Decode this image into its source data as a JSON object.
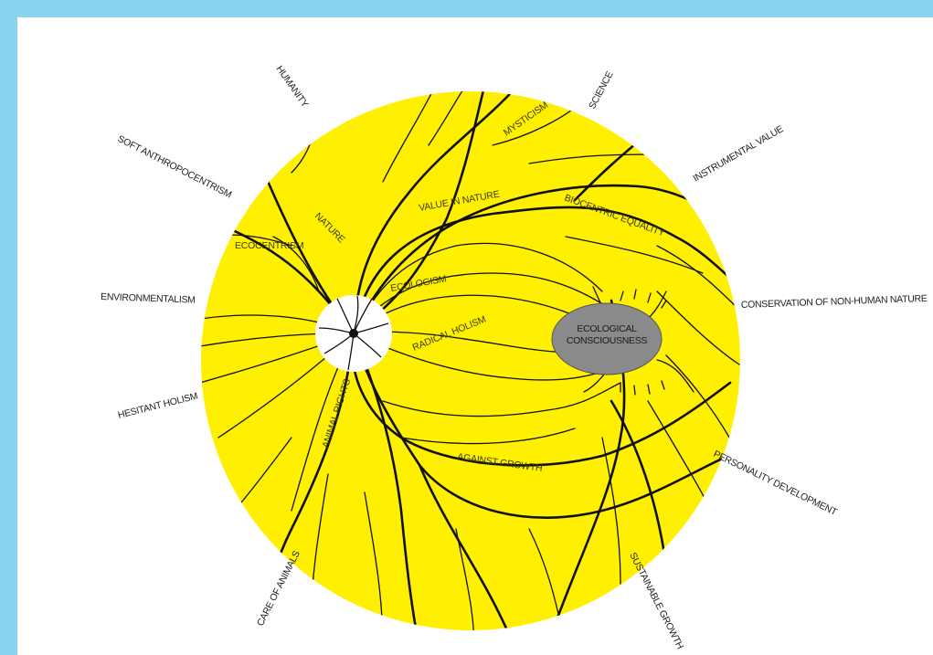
{
  "colors": {
    "frame": "#87d3f2",
    "background": "#ffffff",
    "retina": "#ffef00",
    "vessel": "#111111",
    "disc": "#ffffff",
    "spot": "#8a8a8a"
  },
  "outer_labels": {
    "humanity": "HUMANITY",
    "soft_anthropocentrism": "SOFT ANTHROPOCENTRISM",
    "environmentalism": "ENVIRONMENTALISM",
    "hesitant_holism": "HESITANT HOLISM",
    "care_of_animals": "CARE OF ANIMALS",
    "sustainable_growth": "SUSTAINABLE GROWTH",
    "personality_development": "PERSONALITY DEVELOPMENT",
    "conservation": "CONSERVATION OF NON-HUMAN NATURE",
    "instrumental_value": "INSTRUMENTAL VALUE",
    "science": "SCIENCE"
  },
  "inner_labels": {
    "mysticism": "MYSTICISM",
    "value_in_nature": "VALUE IN NATURE",
    "biocentric_equality": "BIOCENTRIC EQUALITY",
    "nature": "NATURE",
    "ecocentrism": "ECOCENTRISM",
    "ecologism": "ECOLOGISM",
    "radical_holism": "RADICAL HOLISM",
    "animal_rights": "ANIMAL RIGHTS",
    "against_growth": "AGAINST GROWTH"
  },
  "spot": {
    "line1": "ECOLOGICAL",
    "line2": "CONSCIOUSNESS"
  }
}
